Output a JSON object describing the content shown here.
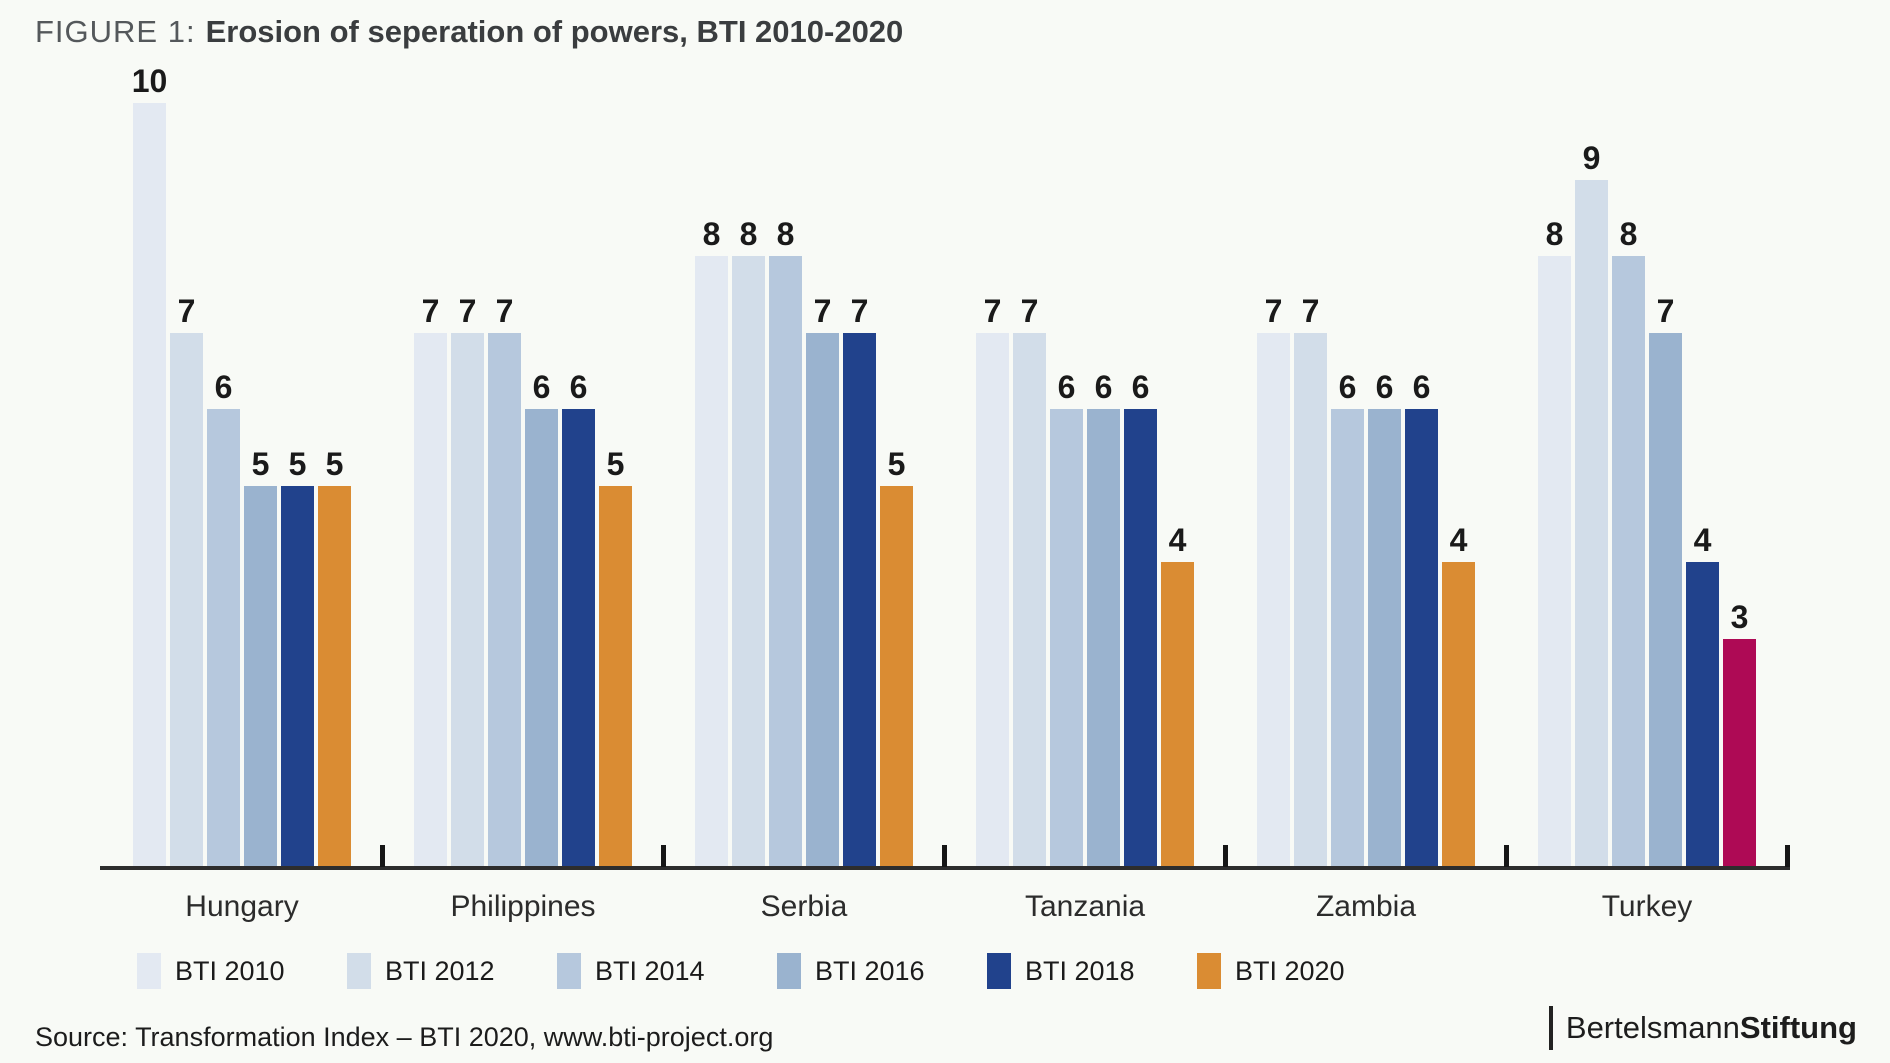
{
  "chart_data": {
    "type": "bar",
    "figure_label": "FIGURE 1:",
    "title": "Erosion of seperation of powers, BTI 2010-2020",
    "categories": [
      "Hungary",
      "Philippines",
      "Serbia",
      "Tanzania",
      "Zambia",
      "Turkey"
    ],
    "series": [
      {
        "name": "BTI 2010",
        "color": "#e3e9f2",
        "values": [
          10,
          7,
          8,
          7,
          7,
          8
        ]
      },
      {
        "name": "BTI 2012",
        "color": "#d2dde9",
        "values": [
          7,
          7,
          8,
          7,
          7,
          9
        ]
      },
      {
        "name": "BTI 2014",
        "color": "#b6c8dd",
        "values": [
          6,
          7,
          8,
          6,
          6,
          8
        ]
      },
      {
        "name": "BTI 2016",
        "color": "#9ab3cf",
        "values": [
          5,
          6,
          7,
          6,
          6,
          7
        ]
      },
      {
        "name": "BTI 2018",
        "color": "#21428c",
        "values": [
          5,
          6,
          7,
          6,
          6,
          4
        ]
      },
      {
        "name": "BTI 2020",
        "color": "#da8c33",
        "values": [
          5,
          5,
          5,
          4,
          4,
          3
        ],
        "color_overrides": {
          "Turkey": "#ae0a55"
        }
      }
    ],
    "ylim": [
      0,
      10
    ],
    "value_labels": true,
    "grid": false,
    "legend_position": "bottom"
  },
  "footer": {
    "source": "Source: Transformation Index – BTI 2020, www.bti-project.org",
    "brand_regular": "Bertelsmann",
    "brand_bold": "Stiftung"
  }
}
